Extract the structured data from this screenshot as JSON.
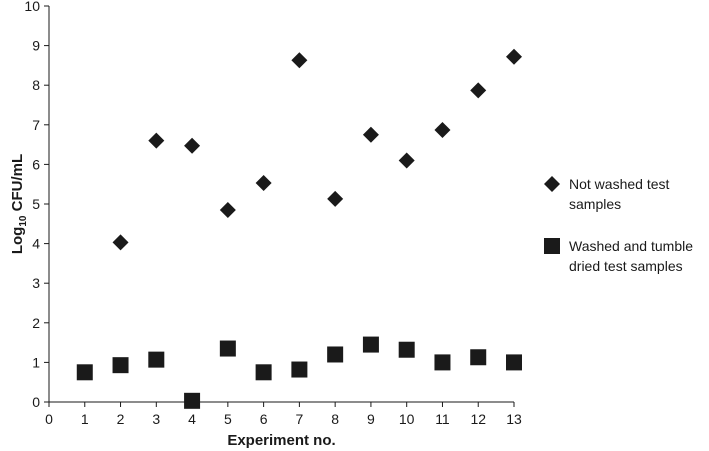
{
  "chart_data": {
    "type": "scatter",
    "title": "",
    "xlabel": "Experiment no.",
    "ylabel_main": "Log",
    "ylabel_sub": "10",
    "ylabel_rest": " CFU/mL",
    "xlim": [
      0,
      13
    ],
    "ylim": [
      0,
      10
    ],
    "x_ticks": [
      0,
      1,
      2,
      3,
      4,
      5,
      6,
      7,
      8,
      9,
      10,
      11,
      12,
      13
    ],
    "y_ticks": [
      0,
      1,
      2,
      3,
      4,
      5,
      6,
      7,
      8,
      9,
      10
    ],
    "grid": false,
    "legend_position": "right",
    "series": [
      {
        "name": "Not washed test samples",
        "legend_lines": [
          "Not washed test",
          "samples"
        ],
        "marker": "diamond",
        "color": "#1a1a1a",
        "x": [
          2,
          3,
          4,
          5,
          6,
          7,
          8,
          9,
          10,
          11,
          12,
          13
        ],
        "y": [
          4.03,
          6.6,
          6.47,
          4.85,
          5.53,
          8.63,
          5.13,
          6.75,
          6.1,
          6.87,
          7.87,
          8.72
        ]
      },
      {
        "name": "Washed and tumble dried test samples",
        "legend_lines": [
          "Washed and tumble",
          "dried test samples"
        ],
        "marker": "square",
        "color": "#1a1a1a",
        "x": [
          1,
          2,
          3,
          4,
          5,
          6,
          7,
          8,
          9,
          10,
          11,
          12,
          13
        ],
        "y": [
          0.75,
          0.93,
          1.07,
          0.03,
          1.35,
          0.75,
          0.82,
          1.2,
          1.45,
          1.32,
          1.0,
          1.13,
          1.0
        ]
      }
    ]
  }
}
